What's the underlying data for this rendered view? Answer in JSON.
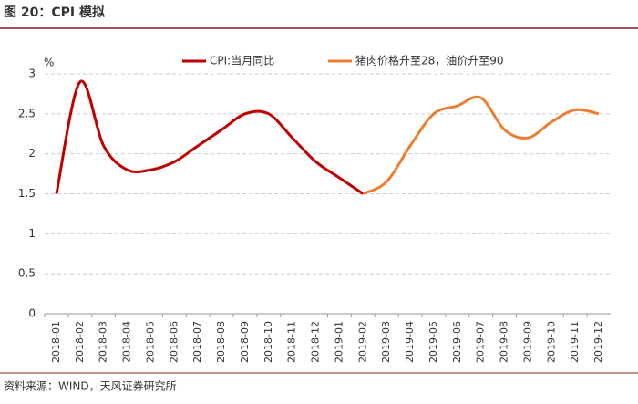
{
  "chart_data": {
    "type": "line",
    "title": "图 20：CPI 模拟",
    "source": "资料来源：WIND，天风证券研究所",
    "y_label": "%",
    "categories": [
      "2018-01",
      "2018-02",
      "2018-03",
      "2018-04",
      "2018-05",
      "2018-06",
      "2018-07",
      "2018-08",
      "2018-09",
      "2018-10",
      "2018-11",
      "2018-12",
      "2019-01",
      "2019-02",
      "2019-03",
      "2019-04",
      "2019-05",
      "2019-06",
      "2019-07",
      "2019-08",
      "2019-09",
      "2019-10",
      "2019-11",
      "2019-12"
    ],
    "series": [
      {
        "name": "CPI:当月同比",
        "color": "#c00000",
        "values": [
          1.5,
          2.9,
          2.1,
          1.8,
          1.8,
          1.9,
          2.1,
          2.3,
          2.5,
          2.5,
          2.2,
          1.9,
          1.7,
          1.5,
          null,
          null,
          null,
          null,
          null,
          null,
          null,
          null,
          null,
          null
        ]
      },
      {
        "name": "猪肉价格升至28，油价升至90",
        "color": "#ed7d31",
        "values": [
          null,
          null,
          null,
          null,
          null,
          null,
          null,
          null,
          null,
          null,
          null,
          null,
          null,
          1.5,
          1.65,
          2.1,
          2.5,
          2.6,
          2.7,
          2.3,
          2.2,
          2.4,
          2.55,
          2.5
        ]
      }
    ],
    "ylim": [
      0,
      3
    ],
    "yticks": [
      0,
      0.5,
      1,
      1.5,
      2,
      2.5,
      3
    ],
    "grid": true,
    "legend": "top"
  }
}
